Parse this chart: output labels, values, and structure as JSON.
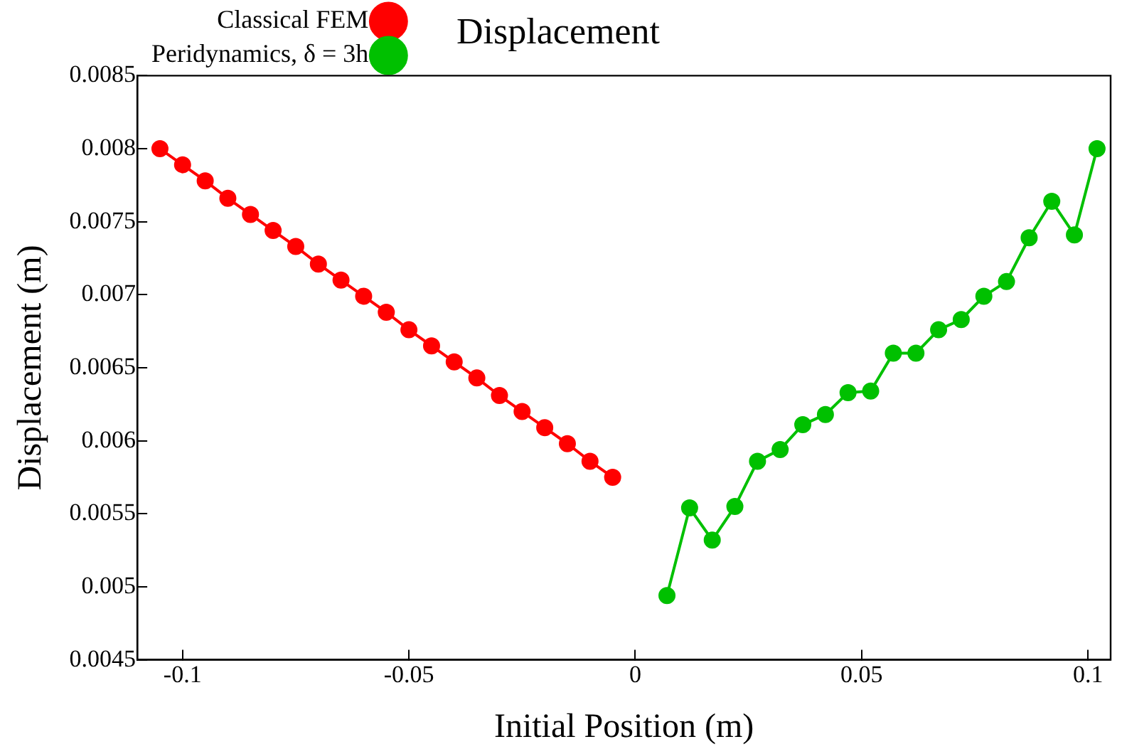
{
  "chart_data": {
    "type": "line",
    "title": "Displacement",
    "xlabel": "Initial Position (m)",
    "ylabel": "Displacement (m)",
    "xlim": [
      -0.11,
      0.105
    ],
    "xticks": [
      -0.1,
      -0.05,
      0,
      0.05,
      0.1
    ],
    "ylim": [
      0.0045,
      0.0085
    ],
    "yticks": [
      0.0045,
      0.005,
      0.0055,
      0.006,
      0.0065,
      0.007,
      0.0075,
      0.008,
      0.0085
    ],
    "grid": false,
    "legend": "top",
    "marker": "circle",
    "line_style": "solid",
    "series": [
      {
        "name": "Classical FEM",
        "color": "#ff0000",
        "x": [
          -0.105,
          -0.1,
          -0.095,
          -0.09,
          -0.085,
          -0.08,
          -0.075,
          -0.07,
          -0.065,
          -0.06,
          -0.055,
          -0.05,
          -0.045,
          -0.04,
          -0.035,
          -0.03,
          -0.025,
          -0.02,
          -0.015,
          -0.01,
          -0.005
        ],
        "values": [
          0.008,
          0.00789,
          0.00778,
          0.00766,
          0.00755,
          0.00744,
          0.00733,
          0.00721,
          0.0071,
          0.00699,
          0.00688,
          0.00676,
          0.00665,
          0.00654,
          0.00643,
          0.00631,
          0.0062,
          0.00609,
          0.00598,
          0.00586,
          0.00575
        ]
      },
      {
        "name": "Peridynamics, δ = 3h",
        "color": "#00c000",
        "x": [
          0.007,
          0.012,
          0.017,
          0.022,
          0.027,
          0.032,
          0.037,
          0.042,
          0.047,
          0.052,
          0.057,
          0.062,
          0.067,
          0.072,
          0.077,
          0.082,
          0.087,
          0.092,
          0.097,
          0.102
        ],
        "values": [
          0.00494,
          0.00554,
          0.00532,
          0.00555,
          0.00586,
          0.00594,
          0.00611,
          0.00618,
          0.00633,
          0.00634,
          0.0066,
          0.0066,
          0.00676,
          0.00683,
          0.00699,
          0.00709,
          0.00739,
          0.00764,
          0.00741,
          0.008
        ]
      }
    ]
  }
}
